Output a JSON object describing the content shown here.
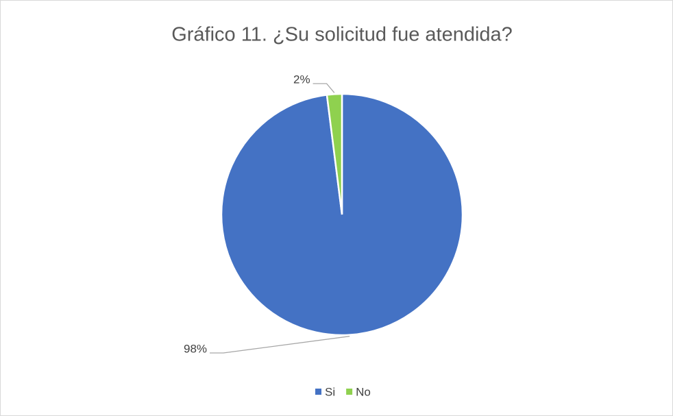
{
  "chart_data": {
    "type": "pie",
    "title": "Gráfico 11. ¿Su solicitud fue atendida?",
    "categories": [
      "Si",
      "No"
    ],
    "values": [
      98,
      2
    ],
    "value_labels": [
      "98%",
      "2%"
    ],
    "colors": [
      "#4472c4",
      "#8fd14f"
    ],
    "legend": "bottom"
  }
}
